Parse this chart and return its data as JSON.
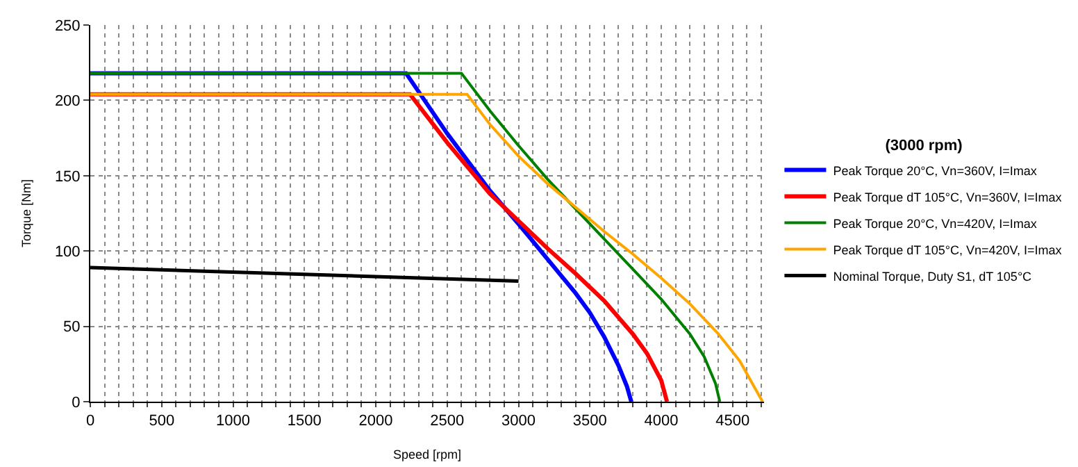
{
  "chart_data": {
    "type": "line",
    "xlabel": "Speed [rpm]",
    "ylabel": "Torque [Nm]",
    "legend_title": "(3000 rpm)",
    "series": [
      {
        "name": "Peak Torque 20°C, Vn=360V, I=Imax",
        "color": "#0000ff",
        "x": [
          0,
          2212,
          2500,
          2800,
          3000,
          3200,
          3400,
          3500,
          3600,
          3700,
          3760,
          3790
        ],
        "values": [
          218,
          218,
          178,
          140,
          118,
          95,
          72,
          59,
          43,
          24,
          10,
          0
        ]
      },
      {
        "name": "Peak Torque dT 105°C, Vn=360V, I=Imax",
        "color": "#ff0000",
        "x": [
          0,
          2240,
          2500,
          2800,
          3000,
          3200,
          3400,
          3600,
          3800,
          3900,
          4000,
          4040
        ],
        "values": [
          204,
          204,
          172,
          138,
          120,
          102,
          85,
          67,
          45,
          32,
          14,
          0
        ]
      },
      {
        "name": "Peak Torque 20°C, Vn=420V, I=Imax",
        "color": "#008000",
        "x": [
          0,
          2600,
          2800,
          3000,
          3200,
          3400,
          3600,
          3800,
          4000,
          4200,
          4300,
          4380,
          4410
        ],
        "values": [
          218,
          218,
          193,
          170,
          148,
          128,
          108,
          88,
          68,
          45,
          30,
          12,
          0
        ]
      },
      {
        "name": "Peak Torque dT 105°C, Vn=420V, I=Imax",
        "color": "#ffa500",
        "x": [
          0,
          2640,
          2800,
          3000,
          3200,
          3400,
          3600,
          3800,
          4000,
          4200,
          4400,
          4550,
          4650,
          4710
        ],
        "values": [
          204,
          204,
          184,
          163,
          145,
          129,
          113,
          98,
          82,
          65,
          45,
          27,
          10,
          0
        ]
      },
      {
        "name": "Nominal Torque, Duty S1, dT 105°C",
        "color": "#000000",
        "x": [
          0,
          3000
        ],
        "values": [
          89,
          80
        ]
      }
    ],
    "xlim": [
      0,
      4720
    ],
    "ylim": [
      0,
      250
    ],
    "xticks": [
      0,
      {
        "value": 100,
        "label": null
      },
      {
        "value": 200,
        "label": null
      },
      {
        "value": 300,
        "label": null
      },
      {
        "value": 400,
        "label": null
      },
      500,
      {
        "value": 600,
        "label": null
      },
      {
        "value": 700,
        "label": null
      },
      {
        "value": 800,
        "label": null
      },
      {
        "value": 900,
        "label": null
      },
      1000,
      {
        "value": 1100,
        "label": null
      },
      {
        "value": 1200,
        "label": null
      },
      {
        "value": 1300,
        "label": null
      },
      {
        "value": 1400,
        "label": null
      },
      1500,
      {
        "value": 1600,
        "label": null
      },
      {
        "value": 1700,
        "label": null
      },
      {
        "value": 1800,
        "label": null
      },
      {
        "value": 1900,
        "label": null
      },
      2000,
      {
        "value": 2100,
        "label": null
      },
      {
        "value": 2200,
        "label": null
      },
      {
        "value": 2300,
        "label": null
      },
      {
        "value": 2400,
        "label": null
      },
      2500,
      {
        "value": 2600,
        "label": null
      },
      {
        "value": 2700,
        "label": null
      },
      {
        "value": 2800,
        "label": null
      },
      {
        "value": 2900,
        "label": null
      },
      3000,
      {
        "value": 3100,
        "label": null
      },
      {
        "value": 3200,
        "label": null
      },
      {
        "value": 3300,
        "label": null
      },
      {
        "value": 3400,
        "label": null
      },
      3500,
      {
        "value": 3600,
        "label": null
      },
      {
        "value": 3700,
        "label": null
      },
      {
        "value": 3800,
        "label": null
      },
      {
        "value": 3900,
        "label": null
      },
      4000,
      {
        "value": 4100,
        "label": null
      },
      {
        "value": 4200,
        "label": null
      },
      {
        "value": 4300,
        "label": null
      },
      {
        "value": 4400,
        "label": null
      },
      4500,
      {
        "value": 4600,
        "label": null
      },
      {
        "value": 4700,
        "label": null
      }
    ],
    "yticks": [
      0,
      50,
      100,
      150,
      200,
      250
    ],
    "grid": true,
    "legend": "right",
    "marker": "none",
    "line_style": "solid"
  }
}
